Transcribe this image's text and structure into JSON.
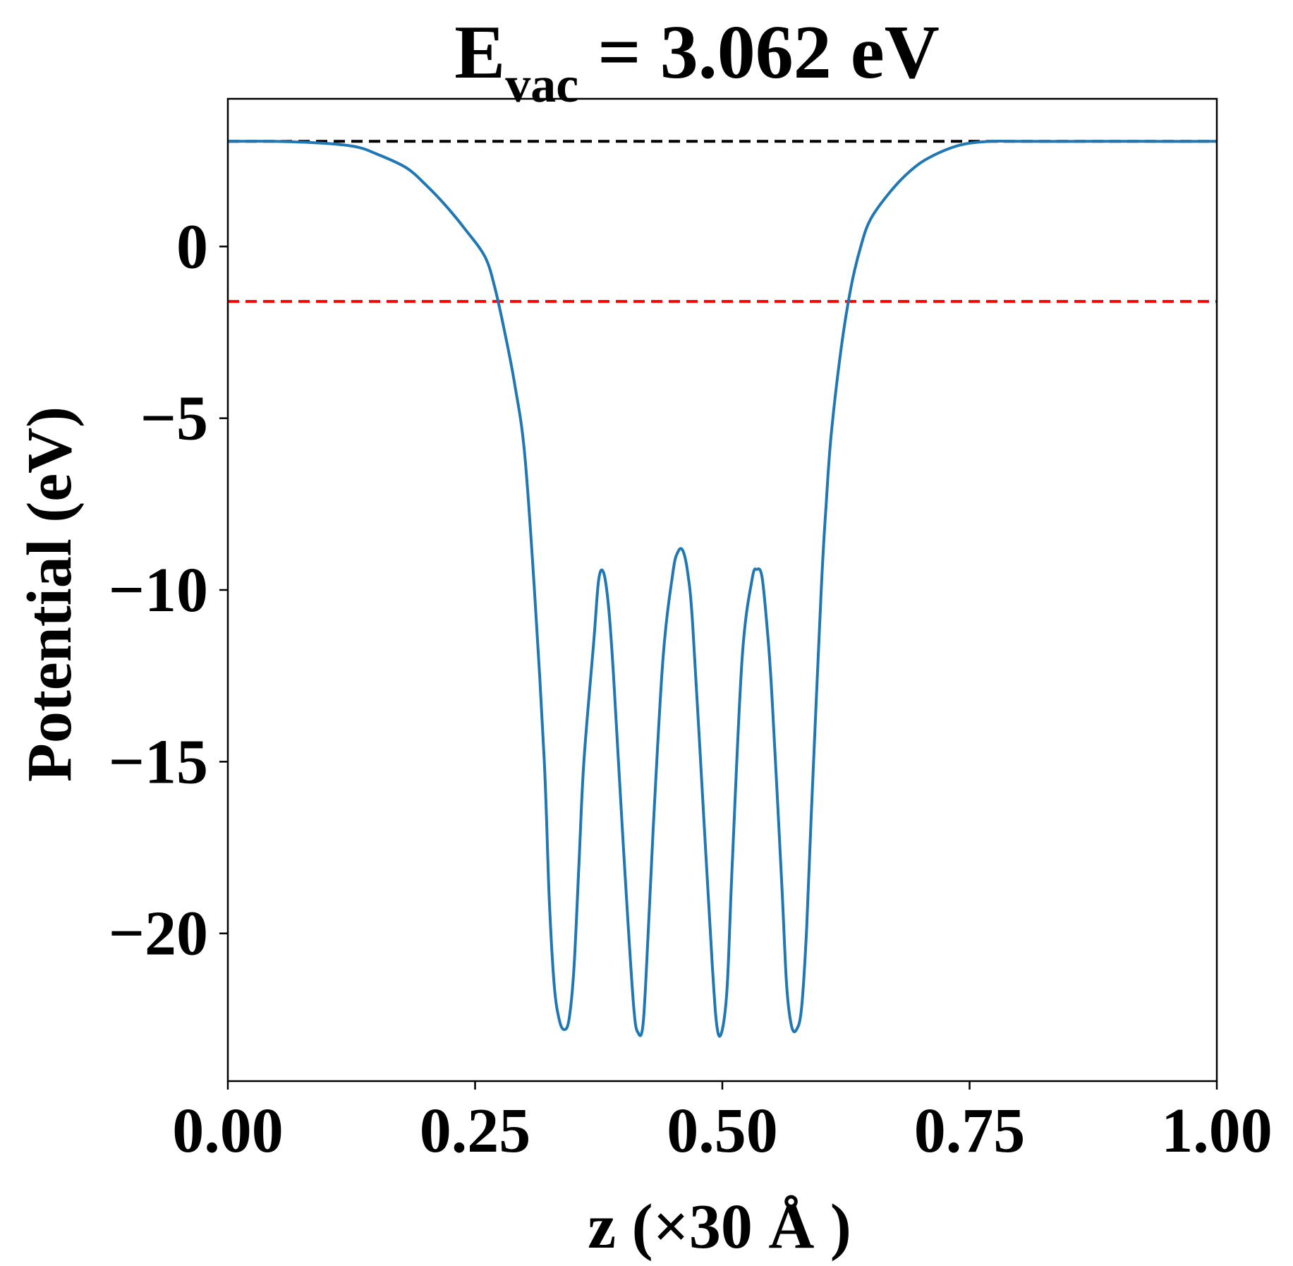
{
  "chart_data": {
    "type": "line",
    "title": {
      "main": "E",
      "subscript": "vac",
      "rest": " = 3.062 eV"
    },
    "xlabel": "z (×30 Å )",
    "ylabel": "Potential (eV)",
    "xlim": [
      0.0,
      1.0
    ],
    "ylim": [
      -24.3,
      4.3
    ],
    "x_ticks": [
      0.0,
      0.25,
      0.5,
      0.75,
      1.0
    ],
    "x_tick_labels": [
      "0.00",
      "0.25",
      "0.50",
      "0.75",
      "1.00"
    ],
    "y_ticks": [
      0,
      -5,
      -10,
      -15,
      -20
    ],
    "y_tick_labels": [
      "0",
      "−5",
      "−10",
      "−15",
      "−20"
    ],
    "grid": false,
    "colors": {
      "potential": "#1f77b4",
      "vacuum_level": "#000000",
      "fermi_level": "#ff0000"
    },
    "reference_lines": [
      {
        "y": 3.062,
        "color": "#000000",
        "style": "dashed"
      },
      {
        "y": -1.6,
        "color": "#ff0000",
        "style": "dashed"
      }
    ],
    "series": [
      {
        "x": [
          0.0,
          0.05,
          0.1,
          0.13,
          0.15,
          0.18,
          0.2,
          0.22,
          0.24,
          0.26,
          0.27,
          0.28,
          0.29,
          0.3,
          0.31,
          0.32,
          0.325,
          0.33,
          0.335,
          0.34,
          0.345,
          0.35,
          0.355,
          0.36,
          0.37,
          0.375,
          0.38,
          0.385,
          0.39,
          0.4,
          0.41,
          0.415,
          0.42,
          0.425,
          0.43,
          0.44,
          0.45,
          0.455,
          0.46,
          0.465,
          0.47,
          0.48,
          0.49,
          0.495,
          0.5,
          0.505,
          0.51,
          0.52,
          0.53,
          0.535,
          0.54,
          0.545,
          0.55,
          0.56,
          0.565,
          0.57,
          0.575,
          0.58,
          0.585,
          0.59,
          0.6,
          0.605,
          0.61,
          0.62,
          0.63,
          0.64,
          0.65,
          0.67,
          0.69,
          0.71,
          0.74,
          0.77,
          0.8,
          0.85,
          0.9,
          0.95,
          1.0
        ],
        "y": [
          3.062,
          3.06,
          3.0,
          2.9,
          2.7,
          2.3,
          1.8,
          1.2,
          0.5,
          -0.3,
          -1.2,
          -2.5,
          -4.0,
          -6.0,
          -10.0,
          -15.0,
          -19.0,
          -21.5,
          -22.5,
          -22.8,
          -22.5,
          -21.0,
          -18.0,
          -15.0,
          -11.5,
          -9.7,
          -9.5,
          -10.5,
          -12.5,
          -17.5,
          -22.0,
          -22.9,
          -22.6,
          -20.0,
          -17.0,
          -12.0,
          -9.5,
          -8.9,
          -8.85,
          -9.5,
          -11.0,
          -16.0,
          -21.0,
          -22.8,
          -22.8,
          -21.5,
          -18.0,
          -12.0,
          -9.7,
          -9.4,
          -9.6,
          -11.0,
          -13.0,
          -18.5,
          -21.5,
          -22.7,
          -22.8,
          -22.2,
          -20.0,
          -16.5,
          -10.0,
          -7.5,
          -5.5,
          -3.0,
          -1.2,
          0.0,
          0.8,
          1.6,
          2.2,
          2.6,
          2.95,
          3.06,
          3.062,
          3.06,
          3.062,
          3.06,
          3.062
        ]
      }
    ]
  }
}
